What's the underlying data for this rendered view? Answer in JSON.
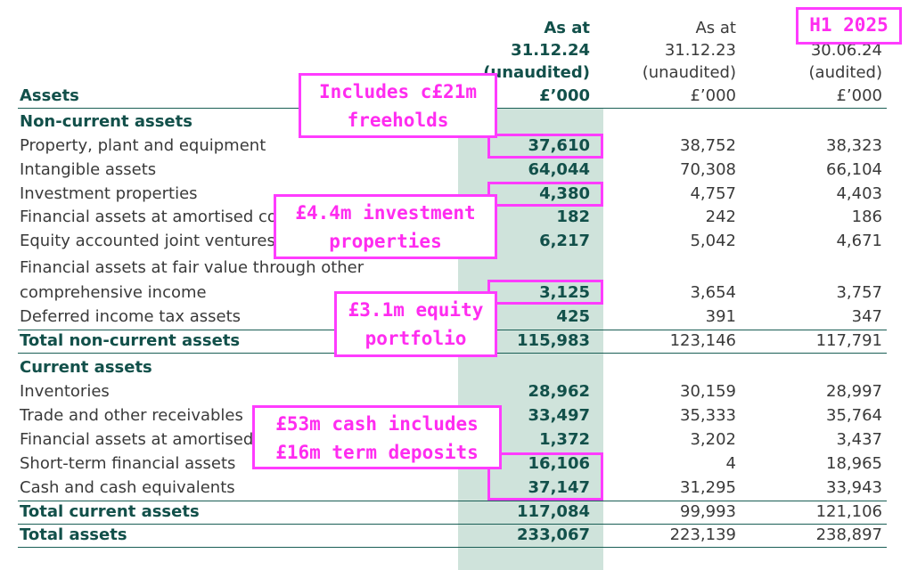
{
  "header": {
    "label": "Assets",
    "columns": [
      [
        "As at",
        "31.12.24",
        "(unaudited)",
        "£’000"
      ],
      [
        "As at",
        "31.12.23",
        "(unaudited)",
        "£’000"
      ],
      [
        "30.06.24",
        "(audited)",
        "£’000"
      ]
    ]
  },
  "rows": [
    {
      "label": "Non-current assets",
      "kind": "heading"
    },
    {
      "label": "Property, plant and equipment",
      "values": [
        "37,610",
        "38,752",
        "38,323"
      ]
    },
    {
      "label": "Intangible assets",
      "values": [
        "64,044",
        "70,308",
        "66,104"
      ]
    },
    {
      "label": "Investment properties",
      "values": [
        "4,380",
        "4,757",
        "4,403"
      ]
    },
    {
      "label": "Financial assets at amortised cost",
      "values": [
        "182",
        "242",
        "186"
      ]
    },
    {
      "label": "Equity accounted joint ventures",
      "values": [
        "6,217",
        "5,042",
        "4,671"
      ]
    },
    {
      "label": "Financial assets at fair value through other"
    },
    {
      "label": "comprehensive income",
      "values": [
        "3,125",
        "3,654",
        "3,757"
      ]
    },
    {
      "label": "Deferred income tax assets",
      "values": [
        "425",
        "391",
        "347"
      ]
    },
    {
      "label": "Total non-current assets",
      "kind": "total",
      "values": [
        "115,983",
        "123,146",
        "117,791"
      ]
    },
    {
      "label": "Current assets",
      "kind": "heading"
    },
    {
      "label": "Inventories",
      "values": [
        "28,962",
        "30,159",
        "28,997"
      ]
    },
    {
      "label": "Trade and other receivables",
      "values": [
        "33,497",
        "35,333",
        "35,764"
      ]
    },
    {
      "label": "Financial assets at amortised cost",
      "values": [
        "1,372",
        "3,202",
        "3,437"
      ]
    },
    {
      "label": "Short-term financial assets",
      "values": [
        "16,106",
        "4",
        "18,965"
      ]
    },
    {
      "label": "Cash and cash equivalents",
      "values": [
        "37,147",
        "31,295",
        "33,943"
      ]
    },
    {
      "label": "Total current assets",
      "kind": "total",
      "values": [
        "117,084",
        "99,993",
        "121,106"
      ]
    },
    {
      "label": "Total assets",
      "kind": "total",
      "values": [
        "233,067",
        "223,139",
        "238,897"
      ]
    }
  ],
  "annotations": [
    "Includes c£21m freeholds",
    "£4.4m investment properties",
    "£3.1m equity portfolio",
    "£53m cash includes £16m term deposits",
    "H1 2025"
  ]
}
